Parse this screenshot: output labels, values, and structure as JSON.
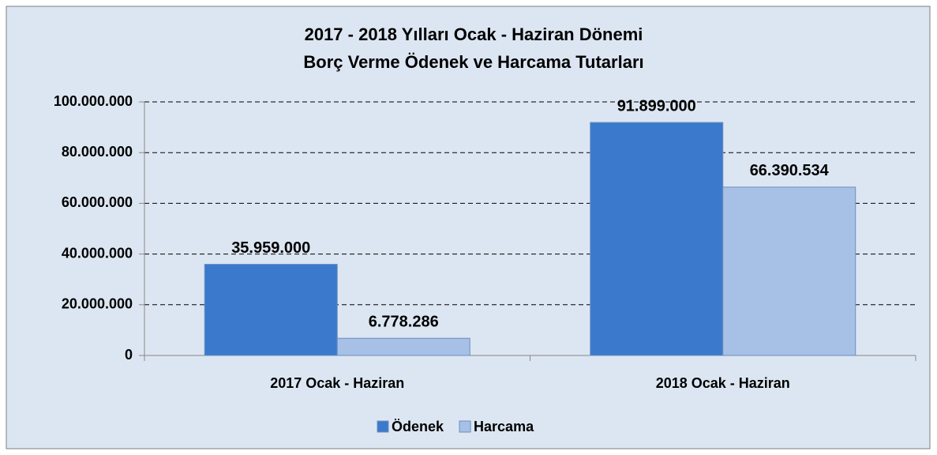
{
  "chart_data": {
    "type": "bar",
    "title": "2017 - 2018 Yılları Ocak - Haziran Dönemi",
    "subtitle": "Borç Verme Ödenek ve Harcama Tutarları",
    "categories": [
      "2017 Ocak - Haziran",
      "2018 Ocak - Haziran"
    ],
    "series": [
      {
        "name": "Ödenek",
        "color": "#3b79cc",
        "values": [
          35959000,
          91899000
        ],
        "value_labels": [
          "35.959.000",
          "91.899.000"
        ]
      },
      {
        "name": "Harcama",
        "color": "#a7c1e6",
        "values": [
          6778286,
          66390534
        ],
        "value_labels": [
          "6.778.286",
          "66.390.534"
        ]
      }
    ],
    "ylim": [
      0,
      100000000
    ],
    "yticks": [
      0,
      {
        "value": 20000000,
        "label": "20.000.000"
      },
      {
        "value": 40000000,
        "label": "40.000.000"
      },
      {
        "value": 60000000,
        "label": "60.000.000"
      },
      {
        "value": 80000000,
        "label": "80.000.000"
      },
      {
        "value": 100000000,
        "label": "100.000.000"
      }
    ],
    "grid": true,
    "legend": "bottom"
  }
}
